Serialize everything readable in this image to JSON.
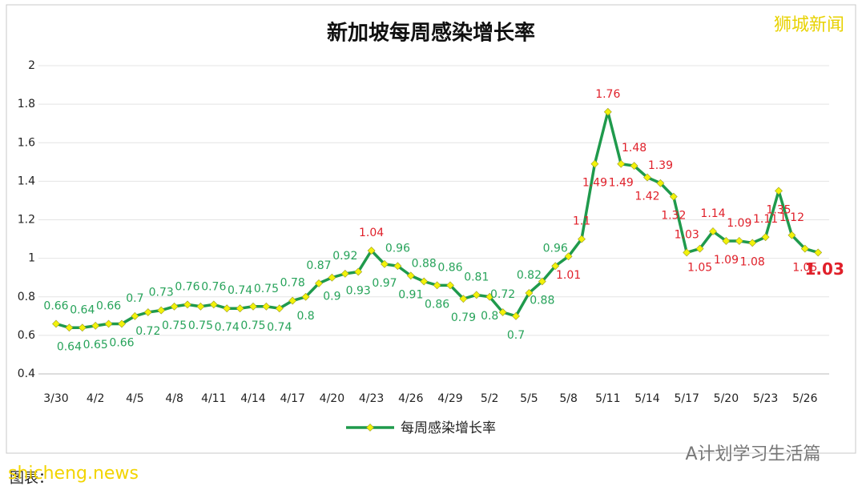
{
  "chart_data": {
    "type": "line",
    "title": "新加坡每周感染增长率",
    "watermark": "狮城新闻",
    "categories": [
      "3/30",
      null,
      null,
      "4/2",
      null,
      null,
      "4/5",
      null,
      null,
      "4/8",
      null,
      null,
      "4/11",
      null,
      null,
      "4/14",
      null,
      null,
      "4/17",
      null,
      null,
      "4/20",
      null,
      null,
      "4/23",
      null,
      null,
      "4/26",
      null,
      null,
      "4/29",
      null,
      null,
      "5/2",
      null,
      null,
      "5/5",
      null,
      null,
      "5/8",
      null,
      null,
      "5/11",
      null,
      null,
      "5/14",
      null,
      null,
      "5/17",
      null,
      null,
      "5/20",
      null,
      null,
      "5/23",
      null,
      null,
      "5/26",
      null
    ],
    "series": [
      {
        "name": "每周感染增长率",
        "color": "#1f9a4c",
        "marker_color": "#f2f20a",
        "values": [
          0.66,
          0.64,
          0.64,
          0.65,
          0.66,
          0.66,
          0.7,
          0.72,
          0.73,
          0.75,
          0.76,
          0.75,
          0.76,
          0.74,
          0.74,
          0.75,
          0.75,
          0.74,
          0.78,
          0.8,
          0.87,
          0.9,
          0.92,
          0.93,
          1.04,
          0.97,
          0.96,
          0.91,
          0.88,
          0.86,
          0.86,
          0.79,
          0.81,
          0.8,
          0.72,
          0.7,
          0.82,
          0.88,
          0.96,
          1.01,
          1.1,
          1.49,
          1.76,
          1.49,
          1.48,
          1.42,
          1.39,
          1.32,
          1.03,
          1.05,
          1.14,
          1.09,
          1.09,
          1.08,
          1.11,
          1.35,
          1.12,
          1.05,
          1.03
        ],
        "label_colors": [
          "#27a35a",
          "#27a35a",
          "#27a35a",
          "#27a35a",
          "#27a35a",
          "#27a35a",
          "#27a35a",
          "#27a35a",
          "#27a35a",
          "#27a35a",
          "#27a35a",
          "#27a35a",
          "#27a35a",
          "#27a35a",
          "#27a35a",
          "#27a35a",
          "#27a35a",
          "#27a35a",
          "#27a35a",
          "#27a35a",
          "#27a35a",
          "#27a35a",
          "#27a35a",
          "#27a35a",
          "#e0202a",
          "#27a35a",
          "#27a35a",
          "#27a35a",
          "#27a35a",
          "#27a35a",
          "#27a35a",
          "#27a35a",
          "#27a35a",
          "#27a35a",
          "#27a35a",
          "#27a35a",
          "#27a35a",
          "#27a35a",
          "#27a35a",
          "#e0202a",
          "#e0202a",
          "#e0202a",
          "#e0202a",
          "#e0202a",
          "#e0202a",
          "#e0202a",
          "#e0202a",
          "#e0202a",
          "#e0202a",
          "#e0202a",
          "#e0202a",
          "#e0202a",
          "#e0202a",
          "#e0202a",
          "#e0202a",
          "#e0202a",
          "#e0202a",
          "#e0202a",
          "#e0202a"
        ]
      }
    ],
    "ylim": [
      0.4,
      2
    ],
    "yticks": [
      0.4,
      0.6,
      0.8,
      1,
      1.2,
      1.4,
      1.6,
      1.8,
      2
    ],
    "grid": true,
    "legend": "bottom",
    "footer_brand": "A计划学习生活篇",
    "footer_note": "图表：",
    "footer_site": "shicheng.news"
  }
}
